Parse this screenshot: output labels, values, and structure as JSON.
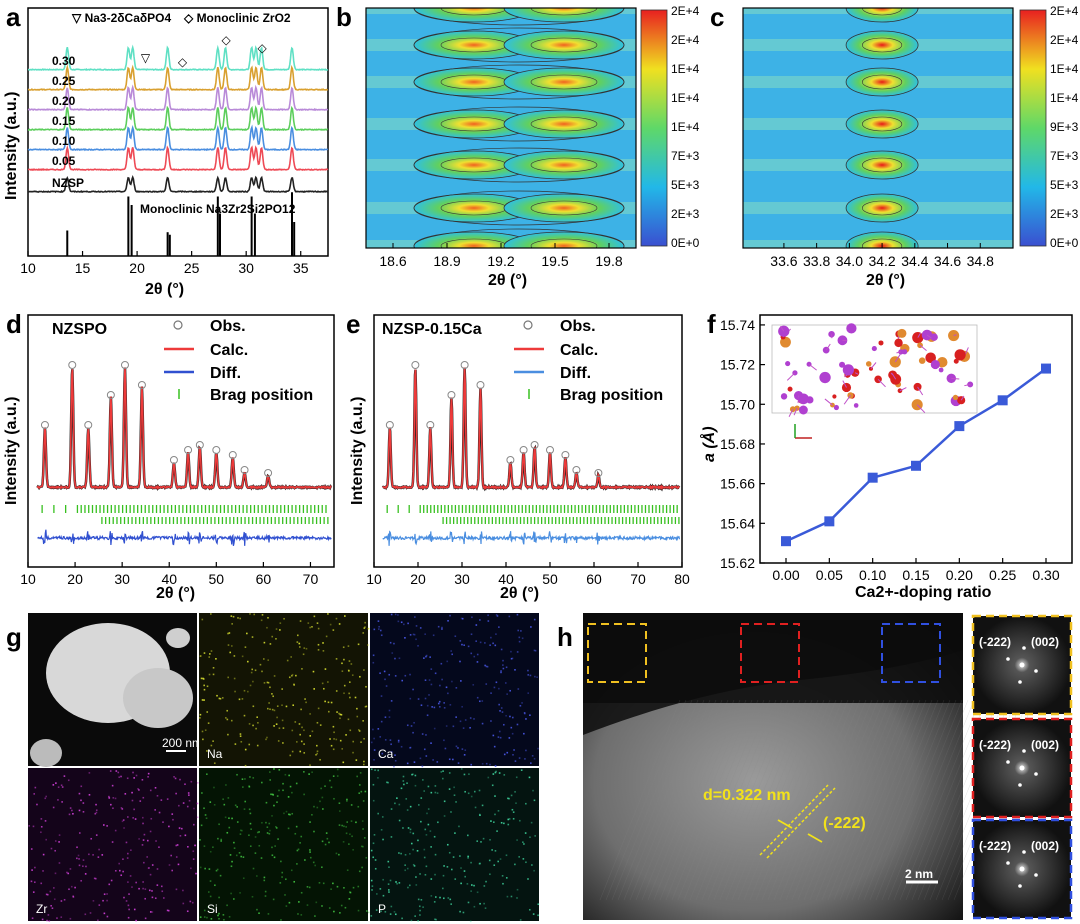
{
  "panel_labels": [
    "a",
    "b",
    "c",
    "d",
    "e",
    "f",
    "g",
    "h"
  ],
  "colors": {
    "line_030": "#5fe0c4",
    "line_025": "#d9a030",
    "line_020": "#b98ad8",
    "line_015": "#5cce5c",
    "line_010": "#4a8ee0",
    "line_005": "#ee4a55",
    "line_nzsp": "#222222",
    "calc": "#ee3a3a",
    "diff": "#3050d0",
    "bragg": "#38c020",
    "curve_f": "#3a5ad8"
  },
  "chart_data": [
    {
      "id": "a",
      "type": "line",
      "xlabel": "2θ (°)",
      "ylabel": "Intensity (a.u.)",
      "xlim": [
        10,
        37.5
      ],
      "xticks": [
        10,
        15,
        20,
        25,
        30,
        35
      ],
      "legend": [
        "▽ Na3-2δCaδPO4",
        "◇ Monoclinic ZrO2"
      ],
      "series": [
        {
          "name": "0.30",
          "color": "#5fe0c4"
        },
        {
          "name": "0.25",
          "color": "#d9a030"
        },
        {
          "name": "0.20",
          "color": "#b98ad8"
        },
        {
          "name": "0.15",
          "color": "#5cce5c"
        },
        {
          "name": "0.10",
          "color": "#4a8ee0"
        },
        {
          "name": "0.05",
          "color": "#ee4a55"
        },
        {
          "name": "NZSP",
          "color": "#222222"
        }
      ],
      "peaks": [
        13.6,
        19.2,
        19.6,
        22.8,
        27.4,
        28.1,
        30.5,
        30.9,
        31.4,
        34.2
      ],
      "reference_label": "Monoclinic Na3Zr2Si2PO12",
      "reference_lines": [
        13.6,
        19.2,
        19.5,
        22.8,
        23.0,
        27.4,
        27.6,
        30.5,
        30.8,
        34.2,
        34.4
      ],
      "markers": [
        {
          "symbol": "▽",
          "x": 20.8
        },
        {
          "symbol": "◇",
          "x": 24.2
        },
        {
          "symbol": "◇",
          "x": 28.2
        },
        {
          "symbol": "◇",
          "x": 31.5
        }
      ]
    },
    {
      "id": "b",
      "type": "heatmap",
      "xlabel": "2θ (°)",
      "xlim": [
        18.45,
        19.95
      ],
      "xticks": [
        "18.6",
        "18.9",
        "19.2",
        "19.5",
        "19.8"
      ],
      "colorbar": [
        "2E+4",
        "2E+4",
        "1E+4",
        "1E+4",
        "1E+4",
        "7E+3",
        "5E+3",
        "2E+3",
        "0E+0"
      ],
      "peaks": [
        19.05,
        19.55
      ]
    },
    {
      "id": "c",
      "type": "heatmap",
      "xlabel": "2θ (°)",
      "xlim": [
        33.35,
        35.0
      ],
      "xticks": [
        "33.6",
        "33.8",
        "34.0",
        "34.2",
        "34.4",
        "34.6",
        "34.8"
      ],
      "colorbar": [
        "2E+4",
        "2E+4",
        "1E+4",
        "1E+4",
        "9E+3",
        "7E+3",
        "5E+3",
        "2E+3",
        "0E+0"
      ],
      "peaks": [
        34.2
      ]
    },
    {
      "id": "d",
      "type": "line",
      "title": "NZSPO",
      "xlabel": "2θ (°)",
      "ylabel": "Intensity (a.u.)",
      "xlim": [
        10,
        75
      ],
      "xticks": [
        10,
        20,
        30,
        40,
        50,
        60,
        70
      ],
      "legend": [
        "Obs.",
        "Calc.",
        "Diff.",
        "Brag position"
      ],
      "peaks": [
        13.6,
        19.4,
        22.8,
        27.6,
        30.6,
        34.2,
        41,
        44,
        46.5,
        50,
        53.5,
        56,
        61
      ]
    },
    {
      "id": "e",
      "type": "line",
      "title": "NZSP-0.15Ca",
      "xlabel": "2θ (°)",
      "ylabel": "Intensity (a.u.)",
      "xlim": [
        10,
        80
      ],
      "xticks": [
        10,
        20,
        30,
        40,
        50,
        60,
        70,
        80
      ],
      "legend": [
        "Obs.",
        "Calc.",
        "Diff.",
        "Brag position"
      ],
      "peaks": [
        13.6,
        19.4,
        22.8,
        27.6,
        30.6,
        34.2,
        41,
        44,
        46.5,
        50,
        53.5,
        56,
        61
      ]
    },
    {
      "id": "f",
      "type": "line",
      "xlabel": "Ca2+-doping ratio",
      "ylabel": "a (Å)",
      "xlim": [
        -0.03,
        0.33
      ],
      "ylim": [
        15.62,
        15.745
      ],
      "xticks": [
        "0.00",
        "0.05",
        "0.10",
        "0.15",
        "0.20",
        "0.25",
        "0.30"
      ],
      "yticks": [
        "15.62",
        "15.64",
        "15.66",
        "15.68",
        "15.70",
        "15.72",
        "15.74"
      ],
      "x": [
        0.0,
        0.05,
        0.1,
        0.15,
        0.2,
        0.25,
        0.3
      ],
      "y": [
        15.631,
        15.641,
        15.663,
        15.669,
        15.689,
        15.702,
        15.718
      ]
    }
  ],
  "panel_g": {
    "scale_bar": "200 nm",
    "maps": [
      "Na",
      "Ca",
      "Zr",
      "Si",
      "P"
    ]
  },
  "panel_h": {
    "d_label": "d=0.322 nm",
    "plane": "(-222)",
    "scale_bar": "2 nm",
    "fft": [
      [
        "(-222)",
        "(002)"
      ],
      [
        "(-222)",
        "(002)"
      ],
      [
        "(-222)",
        "(002)"
      ]
    ]
  }
}
